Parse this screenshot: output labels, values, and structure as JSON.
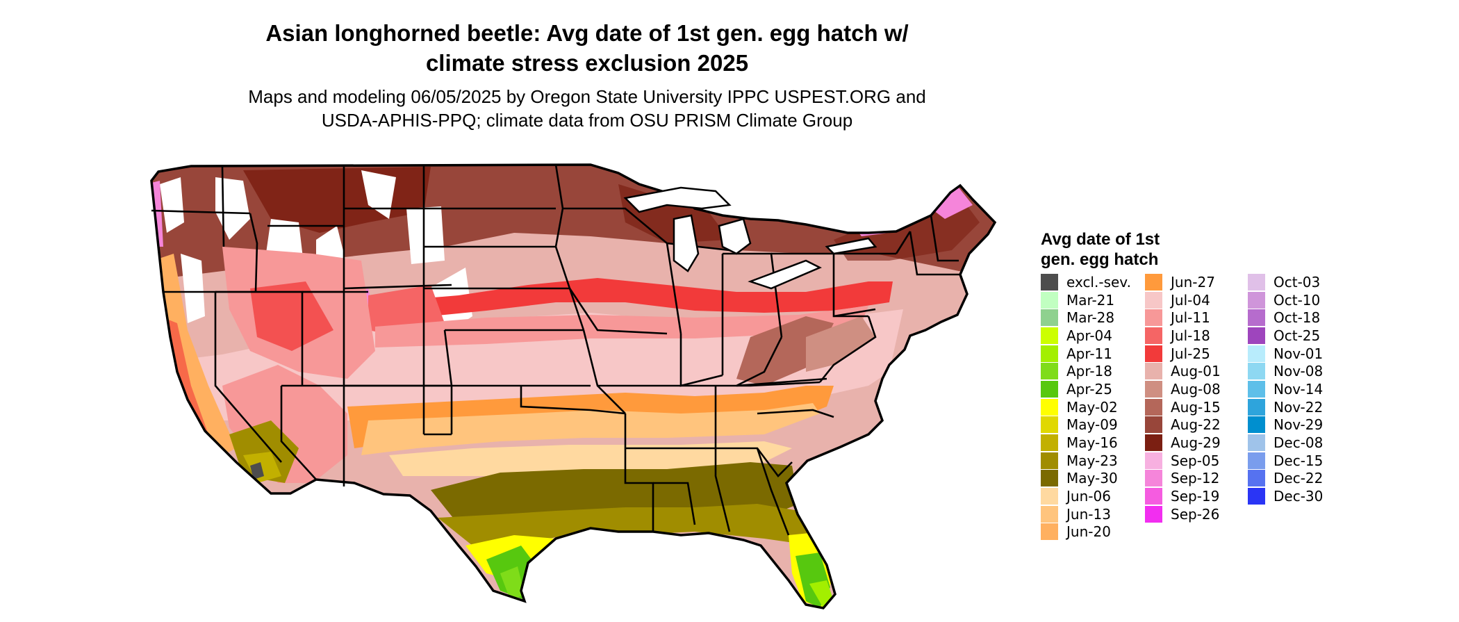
{
  "title_line1": "Asian longhorned beetle: Avg date of 1st gen. egg hatch w/",
  "title_line2": "climate stress exclusion 2025",
  "subtitle_line1": "Maps and modeling 06/05/2025 by Oregon State University IPPC USPEST.ORG and",
  "subtitle_line2": "USDA-APHIS-PPQ; climate data from OSU PRISM Climate Group",
  "legend": {
    "title_line1": "Avg date of 1st",
    "title_line2": "gen. egg hatch",
    "items": [
      {
        "label": "excl.-sev.",
        "color": "#4d4d4d"
      },
      {
        "label": "Mar-21",
        "color": "#c1ffc1"
      },
      {
        "label": "Mar-28",
        "color": "#8fd18f"
      },
      {
        "label": "Apr-04",
        "color": "#ccff00"
      },
      {
        "label": "Apr-11",
        "color": "#a3ef00"
      },
      {
        "label": "Apr-18",
        "color": "#7fdc19"
      },
      {
        "label": "Apr-25",
        "color": "#57c80f"
      },
      {
        "label": "May-02",
        "color": "#ffff00"
      },
      {
        "label": "May-09",
        "color": "#e0d800"
      },
      {
        "label": "May-16",
        "color": "#c2b000"
      },
      {
        "label": "May-23",
        "color": "#a08d00"
      },
      {
        "label": "May-30",
        "color": "#7b6a00"
      },
      {
        "label": "Jun-06",
        "color": "#ffd9a0"
      },
      {
        "label": "Jun-13",
        "color": "#ffc47d"
      },
      {
        "label": "Jun-20",
        "color": "#ffb060"
      },
      {
        "label": "Jun-27",
        "color": "#ff9a3c"
      },
      {
        "label": "Jul-04",
        "color": "#f7c7c7"
      },
      {
        "label": "Jul-11",
        "color": "#f79898"
      },
      {
        "label": "Jul-18",
        "color": "#f56565"
      },
      {
        "label": "Jul-25",
        "color": "#f23a3a"
      },
      {
        "label": "Aug-01",
        "color": "#e8b2ac"
      },
      {
        "label": "Aug-08",
        "color": "#cf8f82"
      },
      {
        "label": "Aug-15",
        "color": "#b4675a"
      },
      {
        "label": "Aug-22",
        "color": "#98463a"
      },
      {
        "label": "Aug-29",
        "color": "#7b1f12"
      },
      {
        "label": "Sep-05",
        "color": "#f7b0e0"
      },
      {
        "label": "Sep-12",
        "color": "#f585da"
      },
      {
        "label": "Sep-19",
        "color": "#f55ce0"
      },
      {
        "label": "Sep-26",
        "color": "#f22ef0"
      },
      {
        "label": "Oct-03",
        "color": "#e0c0e8"
      },
      {
        "label": "Oct-10",
        "color": "#cf95da"
      },
      {
        "label": "Oct-18",
        "color": "#b66ccd"
      },
      {
        "label": "Oct-25",
        "color": "#9e45bd"
      },
      {
        "label": "Nov-01",
        "color": "#b8ecfc"
      },
      {
        "label": "Nov-08",
        "color": "#8ed8f2"
      },
      {
        "label": "Nov-14",
        "color": "#5ebfe9"
      },
      {
        "label": "Nov-22",
        "color": "#2ea4dc"
      },
      {
        "label": "Nov-29",
        "color": "#008fcf"
      },
      {
        "label": "Dec-08",
        "color": "#9fc3ea"
      },
      {
        "label": "Dec-15",
        "color": "#7a9ded"
      },
      {
        "label": "Dec-22",
        "color": "#5672f0"
      },
      {
        "label": "Dec-30",
        "color": "#2a35f5"
      }
    ]
  }
}
